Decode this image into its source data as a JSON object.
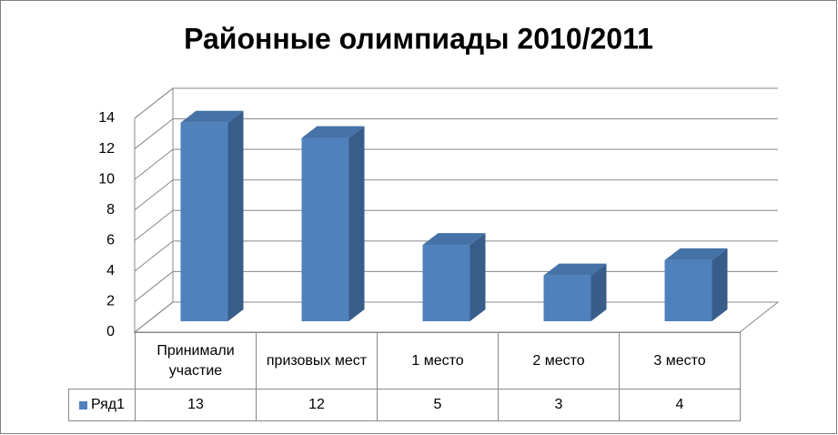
{
  "chart_data": {
    "type": "bar3d",
    "title": "Районные олимпиады 2010/2011",
    "categories": [
      "Принимали участие",
      "призовых мест",
      "1 место",
      "2 место",
      "3 место"
    ],
    "series": [
      {
        "name": "Ряд1",
        "color": "#4f81bd",
        "values": [
          13,
          12,
          5,
          3,
          4
        ]
      }
    ],
    "ylim": [
      0,
      14
    ],
    "yticks": [
      0,
      2,
      4,
      6,
      8,
      10,
      12,
      14
    ],
    "grid": true,
    "data_table": true
  }
}
